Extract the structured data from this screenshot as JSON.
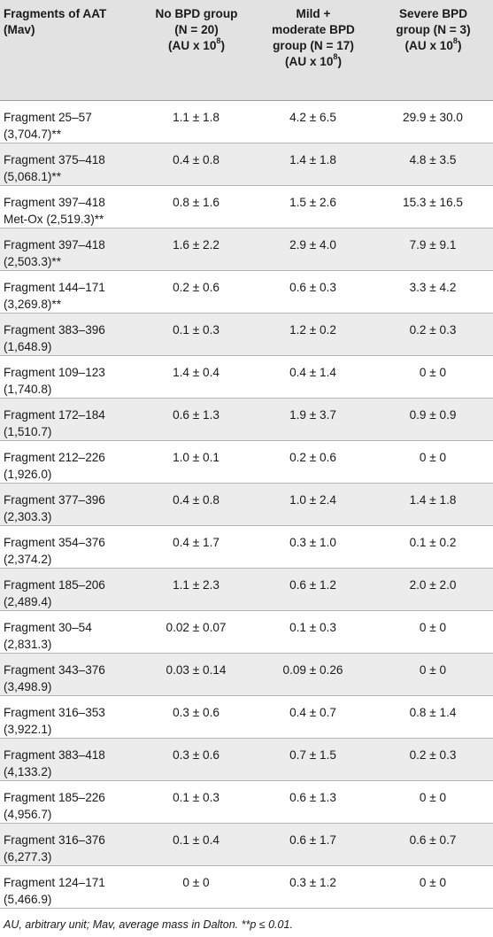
{
  "header": {
    "col0": [
      "Fragments of AAT",
      "(Mav)"
    ],
    "col1": [
      "No BPD group",
      "(N = 20)",
      "(AU x 10",
      "8",
      ")"
    ],
    "col2": [
      "Mild +",
      "moderate BPD",
      "group (N = 17)",
      "(AU x 10",
      "8",
      ")"
    ],
    "col3": [
      "Severe BPD",
      "group (N = 3)",
      "(AU x 10",
      "8",
      ")"
    ]
  },
  "rows": [
    {
      "name": "Fragment 25–57",
      "mass": "(3,704.7)**",
      "no_bpd": "1.1 ± 1.8",
      "mild_moderate": "4.2 ± 6.5",
      "severe": "29.9 ± 30.0"
    },
    {
      "name": "Fragment 375–418",
      "mass": "(5,068.1)**",
      "no_bpd": "0.4 ± 0.8",
      "mild_moderate": "1.4 ± 1.8",
      "severe": "4.8 ± 3.5"
    },
    {
      "name": "Fragment 397–418",
      "mass": "Met-Ox (2,519.3)**",
      "no_bpd": "0.8 ± 1.6",
      "mild_moderate": "1.5 ± 2.6",
      "severe": "15.3 ± 16.5"
    },
    {
      "name": "Fragment 397–418",
      "mass": "(2,503.3)**",
      "no_bpd": "1.6 ± 2.2",
      "mild_moderate": "2.9 ± 4.0",
      "severe": "7.9 ± 9.1"
    },
    {
      "name": "Fragment 144–171",
      "mass": "(3,269.8)**",
      "no_bpd": "0.2 ± 0.6",
      "mild_moderate": "0.6 ± 0.3",
      "severe": "3.3 ± 4.2"
    },
    {
      "name": "Fragment 383–396",
      "mass": "(1,648.9)",
      "no_bpd": "0.1 ± 0.3",
      "mild_moderate": "1.2 ± 0.2",
      "severe": "0.2 ± 0.3"
    },
    {
      "name": "Fragment 109–123",
      "mass": "(1,740.8)",
      "no_bpd": "1.4 ± 0.4",
      "mild_moderate": "0.4 ± 1.4",
      "severe": "0 ± 0"
    },
    {
      "name": "Fragment 172–184",
      "mass": "(1,510.7)",
      "no_bpd": "0.6 ± 1.3",
      "mild_moderate": "1.9 ± 3.7",
      "severe": "0.9 ± 0.9"
    },
    {
      "name": "Fragment 212–226",
      "mass": "(1,926.0)",
      "no_bpd": "1.0 ± 0.1",
      "mild_moderate": "0.2 ± 0.6",
      "severe": "0 ± 0"
    },
    {
      "name": "Fragment 377–396",
      "mass": "(2,303.3)",
      "no_bpd": "0.4 ± 0.8",
      "mild_moderate": "1.0 ± 2.4",
      "severe": "1.4 ± 1.8"
    },
    {
      "name": "Fragment 354–376",
      "mass": "(2,374.2)",
      "no_bpd": "0.4 ± 1.7",
      "mild_moderate": "0.3 ± 1.0",
      "severe": "0.1 ± 0.2"
    },
    {
      "name": "Fragment 185–206",
      "mass": "(2,489.4)",
      "no_bpd": "1.1 ± 2.3",
      "mild_moderate": "0.6 ± 1.2",
      "severe": "2.0 ± 2.0"
    },
    {
      "name": "Fragment 30–54",
      "mass": "(2,831.3)",
      "no_bpd": "0.02 ± 0.07",
      "mild_moderate": "0.1 ± 0.3",
      "severe": "0 ± 0"
    },
    {
      "name": "Fragment 343–376",
      "mass": "(3,498.9)",
      "no_bpd": "0.03 ± 0.14",
      "mild_moderate": "0.09 ± 0.26",
      "severe": "0 ± 0"
    },
    {
      "name": "Fragment 316–353",
      "mass": "(3,922.1)",
      "no_bpd": "0.3 ± 0.6",
      "mild_moderate": "0.4 ± 0.7",
      "severe": "0.8 ± 1.4"
    },
    {
      "name": "Fragment 383–418",
      "mass": "(4,133.2)",
      "no_bpd": "0.3 ± 0.6",
      "mild_moderate": "0.7 ± 1.5",
      "severe": "0.2 ± 0.3"
    },
    {
      "name": "Fragment 185–226",
      "mass": "(4,956.7)",
      "no_bpd": "0.1 ± 0.3",
      "mild_moderate": "0.6 ± 1.3",
      "severe": "0 ± 0"
    },
    {
      "name": "Fragment 316–376",
      "mass": "(6,277.3)",
      "no_bpd": "0.1 ± 0.4",
      "mild_moderate": "0.6 ± 1.7",
      "severe": "0.6 ± 0.7"
    },
    {
      "name": "Fragment 124–171",
      "mass": "(5,466.9)",
      "no_bpd": "0 ± 0",
      "mild_moderate": "0.3 ± 1.2",
      "severe": "0 ± 0"
    }
  ],
  "footnote": "AU, arbitrary unit; Mav, average mass in Dalton. **p ≤ 0.01.",
  "colors": {
    "header_bg": "#e2e2e2",
    "stripe_bg": "#ececec",
    "rule": "#b5b5b5",
    "text": "#1a1a1a"
  }
}
